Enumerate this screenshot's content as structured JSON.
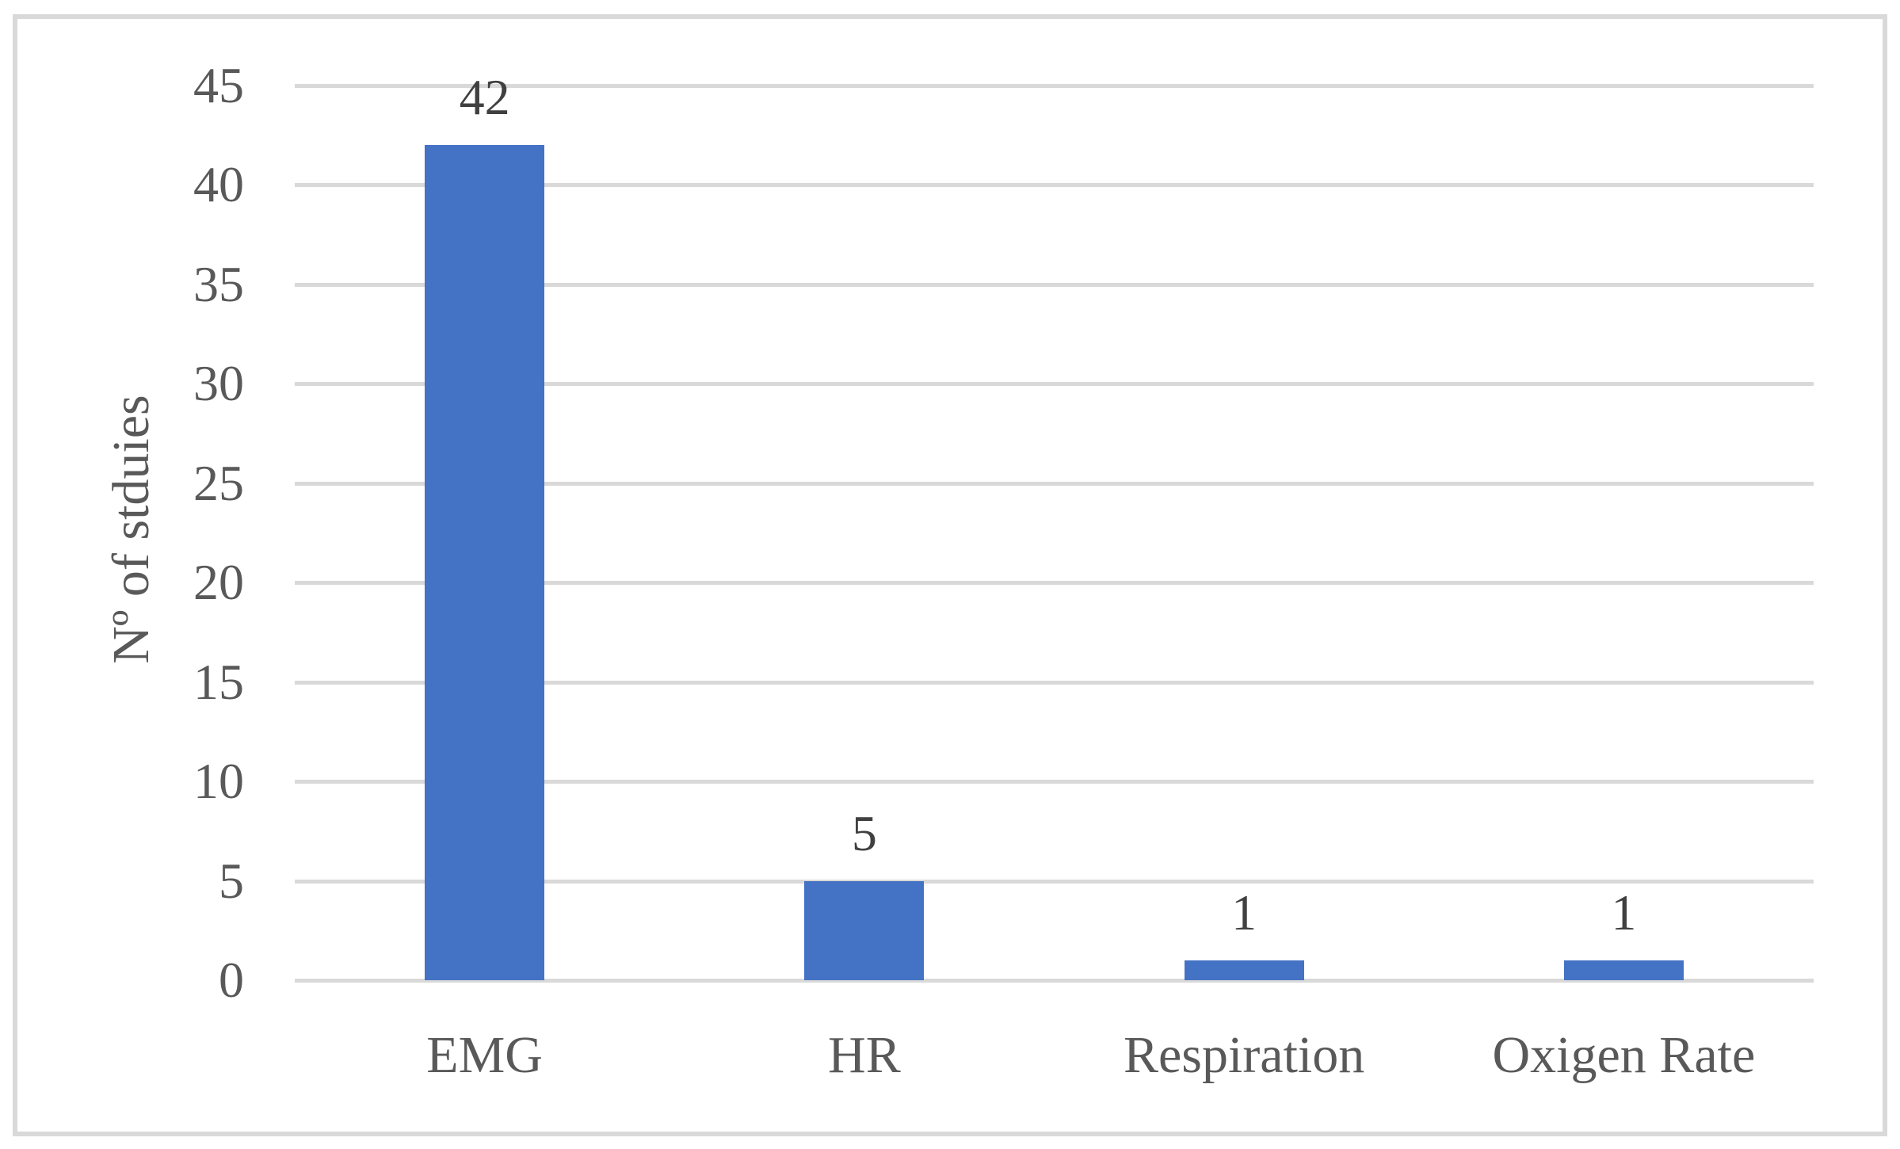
{
  "figure": {
    "background": "#FFFFFF",
    "frame_border_color": "#D9D9D9"
  },
  "chart_data": {
    "type": "bar",
    "title": "",
    "categories": [
      "EMG",
      "HR",
      "Respiration",
      "Oxigen Rate"
    ],
    "values": [
      42,
      5,
      1,
      1
    ],
    "data_labels": [
      "42",
      "5",
      "1",
      "1"
    ],
    "xlabel": "",
    "ylabel": "Nº of stduies",
    "ylim": [
      0,
      45
    ],
    "yticks": [
      0,
      5,
      10,
      15,
      20,
      25,
      30,
      35,
      40,
      45
    ],
    "grid": "horizontal",
    "legend": "none",
    "colors": {
      "bar": "#4472C4",
      "gridline": "#D9D9D9",
      "axis_text": "#595959",
      "data_label": "#404040"
    }
  }
}
